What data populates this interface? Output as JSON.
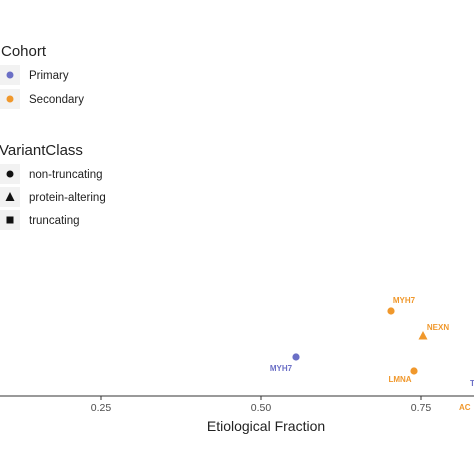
{
  "chart_data": {
    "type": "scatter",
    "xlabel": "Etiological Fraction",
    "ylabel": "",
    "title": "",
    "x_ticks": [
      "0.25",
      "0.50",
      "0.75"
    ],
    "grid": false,
    "legend": {
      "placement": "left",
      "groups": [
        {
          "title": "Cohort",
          "entries": [
            {
              "label": "Primary",
              "color": "#6b6fc6",
              "shape": "circle"
            },
            {
              "label": "Secondary",
              "color": "#f0982c",
              "shape": "circle"
            }
          ]
        },
        {
          "title": "VariantClass",
          "entries": [
            {
              "label": "non-truncating",
              "color": "#111111",
              "shape": "circle"
            },
            {
              "label": "protein-altering",
              "color": "#111111",
              "shape": "triangle"
            },
            {
              "label": "truncating",
              "color": "#111111",
              "shape": "square"
            }
          ]
        }
      ]
    },
    "points": [
      {
        "gene": "MYH7",
        "x": 0.555,
        "cohort": "Primary",
        "variant_class": "non-truncating"
      },
      {
        "gene": "MYH7",
        "x": 0.705,
        "cohort": "Secondary",
        "variant_class": "non-truncating"
      },
      {
        "gene": "NEXN",
        "x": 0.755,
        "cohort": "Secondary",
        "variant_class": "protein-altering"
      },
      {
        "gene": "LMNA",
        "x": 0.74,
        "cohort": "Secondary",
        "variant_class": "non-truncating"
      },
      {
        "gene": "T",
        "x": 0.82,
        "cohort": "Primary",
        "variant_class": "truncating"
      },
      {
        "gene": "AC",
        "x": 0.81,
        "cohort": "Secondary",
        "variant_class": "non-truncating"
      }
    ]
  }
}
